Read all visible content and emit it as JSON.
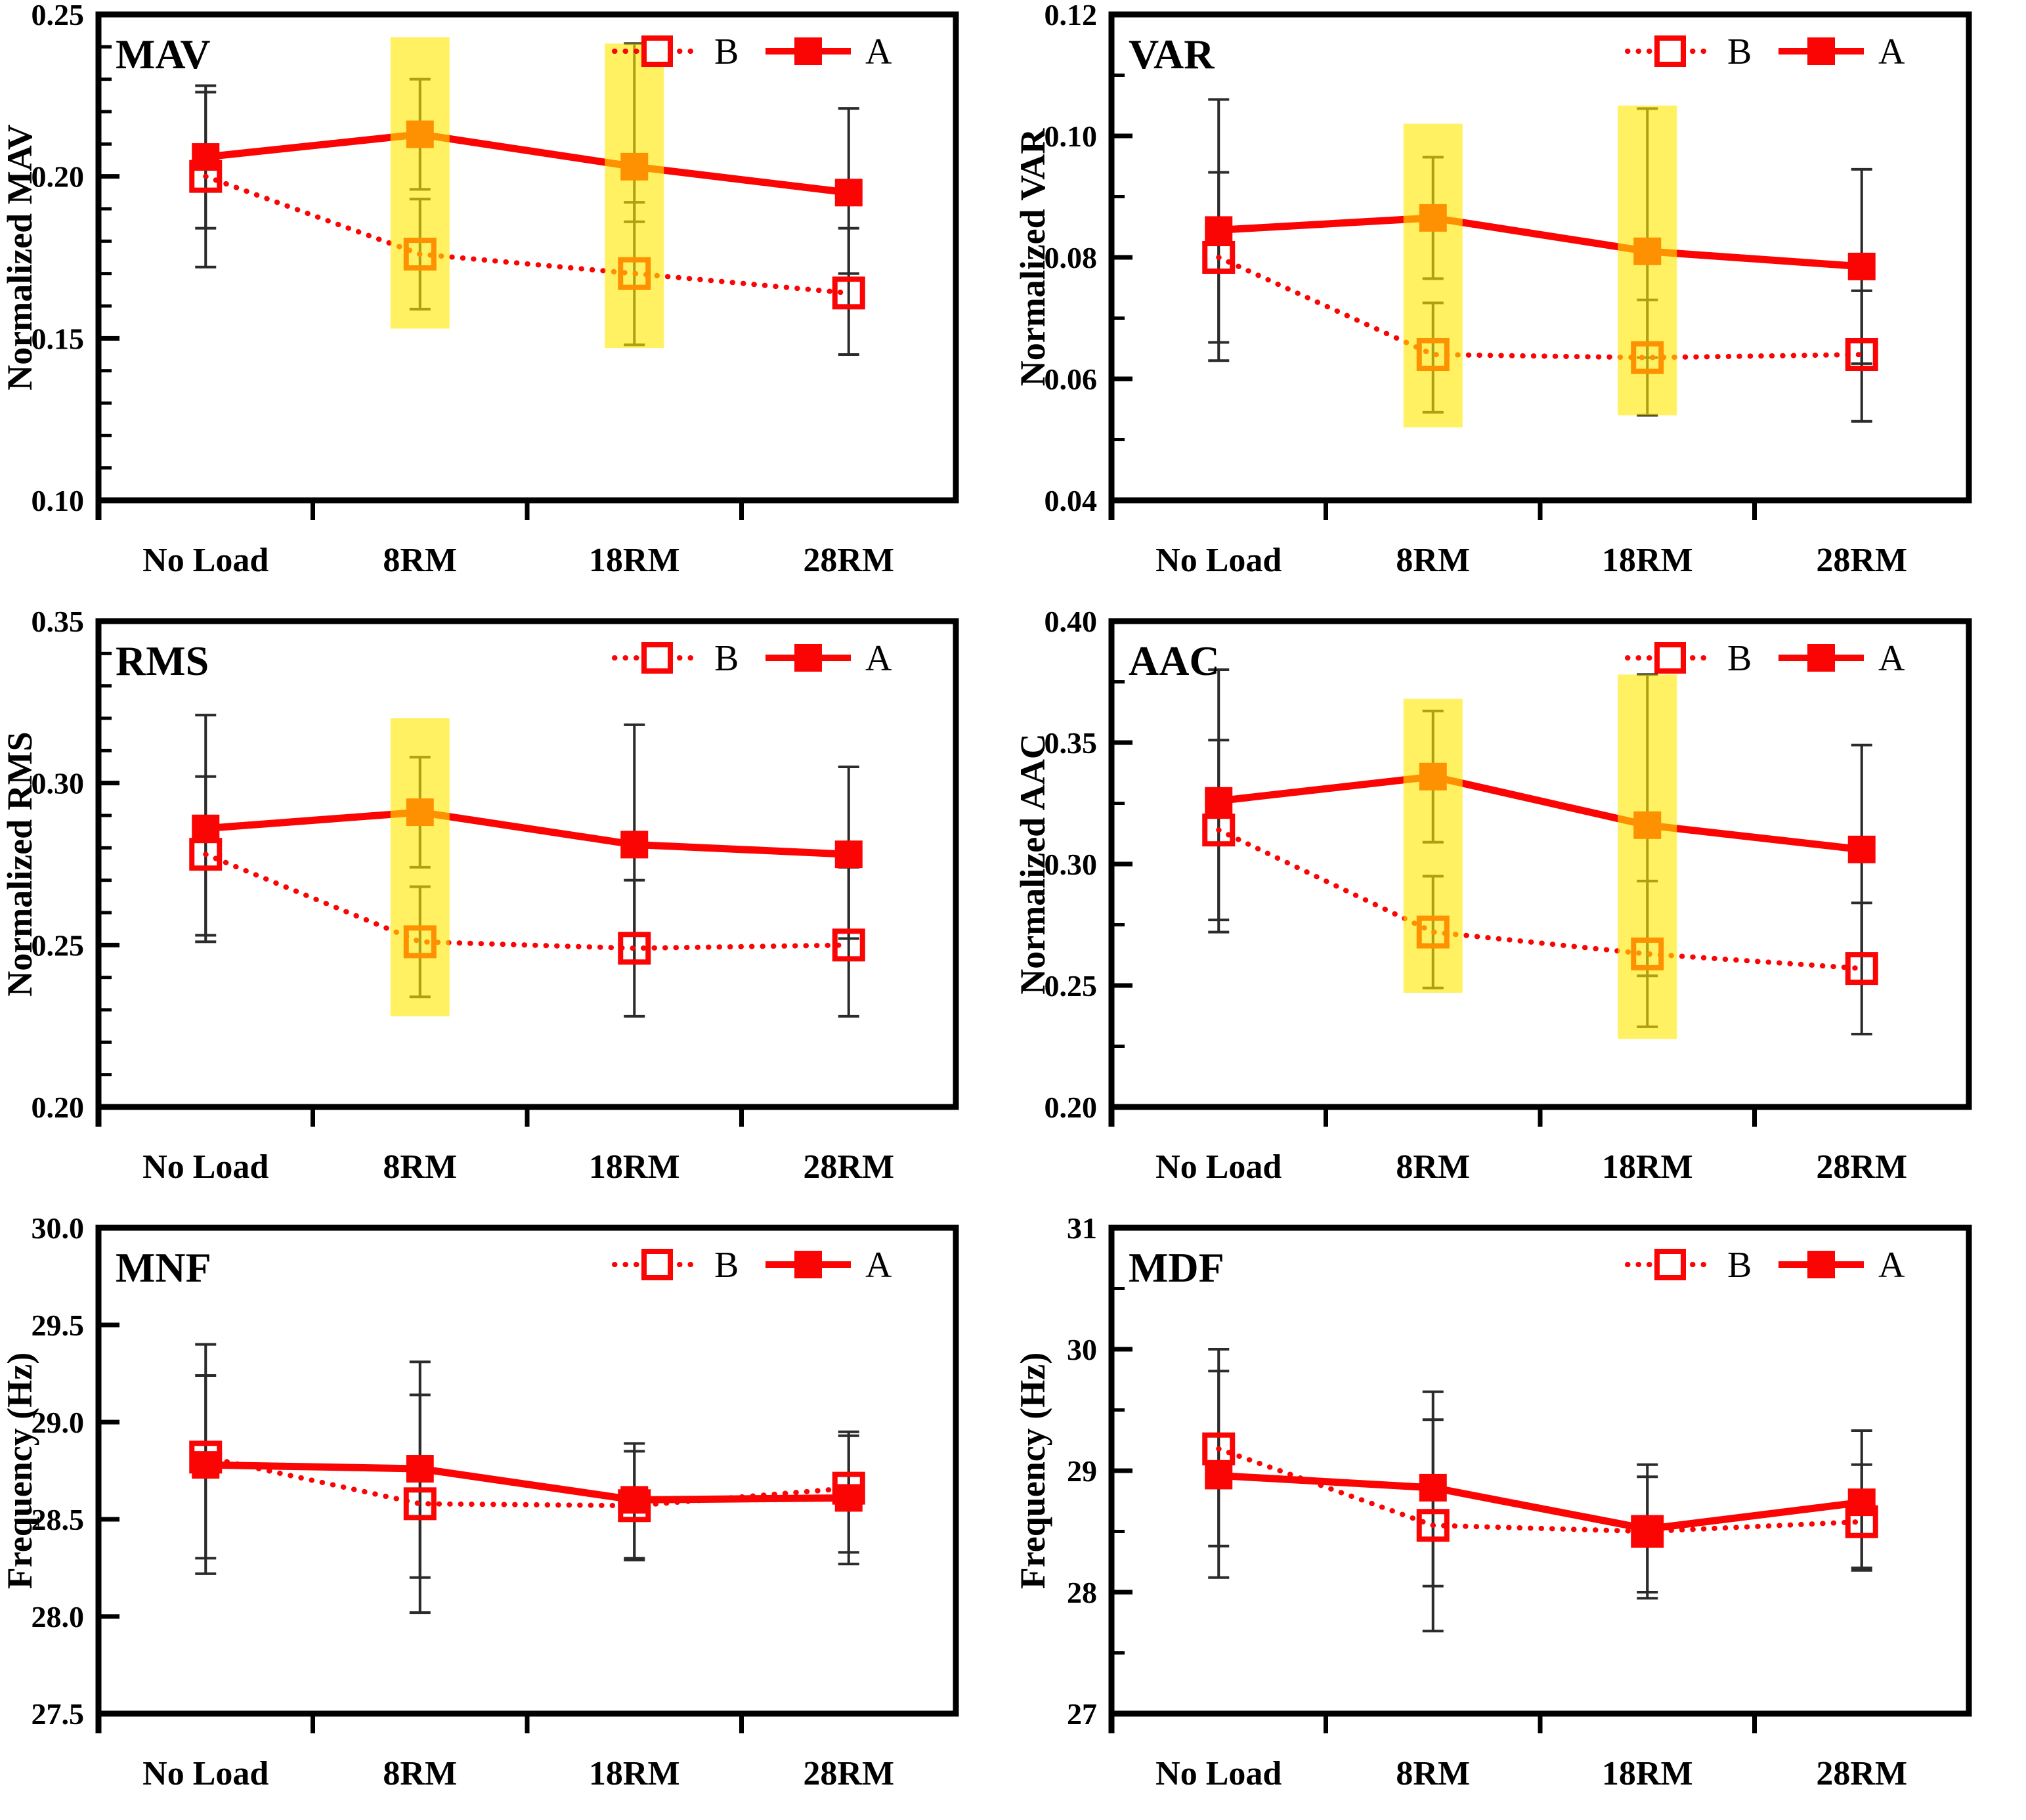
{
  "figure": {
    "background": "#ffffff",
    "columns": 2,
    "rows": 3
  },
  "colors": {
    "series_red": "#fb0404",
    "error_bar": "#2b2b2b",
    "highlight_band": "rgba(255,232,0,0.62)",
    "frame": "#000000",
    "text": "#000000"
  },
  "legend": {
    "entries": [
      {
        "label": "B",
        "style": "dotted-open-square"
      },
      {
        "label": "A",
        "style": "solid-filled-square"
      }
    ]
  },
  "categories": [
    "No Load",
    "8RM",
    "18RM",
    "28RM"
  ],
  "chart_data": [
    {
      "type": "line",
      "title": "MAV",
      "ylabel": "Normalized MAV",
      "ylim": [
        0.1,
        0.25
      ],
      "yticks": [
        0.1,
        0.15,
        0.2,
        0.25
      ],
      "ytick_labels": [
        "0.10",
        "0.15",
        "0.20",
        "0.25"
      ],
      "minor_step": 0.01,
      "grid": false,
      "legend_position": "top-right-inside",
      "series": [
        {
          "name": "B",
          "style": "dotted-open",
          "values": [
            0.2,
            0.176,
            0.17,
            0.164
          ],
          "err_hi": [
            0.226,
            0.193,
            0.192,
            0.184
          ],
          "err_lo": [
            0.172,
            0.159,
            0.148,
            0.145
          ]
        },
        {
          "name": "A",
          "style": "solid-filled",
          "values": [
            0.206,
            0.213,
            0.203,
            0.195
          ],
          "err_hi": [
            0.228,
            0.23,
            0.241,
            0.221
          ],
          "err_lo": [
            0.184,
            0.196,
            0.186,
            0.17
          ]
        }
      ],
      "highlight_bands": [
        {
          "category": "8RM",
          "from": 0.153,
          "to": 0.243
        },
        {
          "category": "18RM",
          "from": 0.147,
          "to": 0.241
        }
      ]
    },
    {
      "type": "line",
      "title": "VAR",
      "ylabel": "Normalized VAR",
      "ylim": [
        0.04,
        0.12
      ],
      "yticks": [
        0.04,
        0.06,
        0.08,
        0.1,
        0.12
      ],
      "ytick_labels": [
        "0.04",
        "0.06",
        "0.08",
        "0.10",
        "0.12"
      ],
      "minor_step": 0.01,
      "grid": false,
      "legend_position": "top-right-inside",
      "series": [
        {
          "name": "B",
          "style": "dotted-open",
          "values": [
            0.08,
            0.064,
            0.0635,
            0.064
          ],
          "err_hi": [
            0.094,
            0.0725,
            0.073,
            0.0745
          ],
          "err_lo": [
            0.066,
            0.0545,
            0.054,
            0.053
          ]
        },
        {
          "name": "A",
          "style": "solid-filled",
          "values": [
            0.0845,
            0.0865,
            0.081,
            0.0785
          ],
          "err_hi": [
            0.106,
            0.0965,
            0.1045,
            0.0945
          ],
          "err_lo": [
            0.063,
            0.0765,
            0.0635,
            0.0625
          ]
        }
      ],
      "highlight_bands": [
        {
          "category": "8RM",
          "from": 0.052,
          "to": 0.102
        },
        {
          "category": "18RM",
          "from": 0.054,
          "to": 0.105
        }
      ]
    },
    {
      "type": "line",
      "title": "RMS",
      "ylabel": "Normalized RMS",
      "ylim": [
        0.2,
        0.35
      ],
      "yticks": [
        0.2,
        0.25,
        0.3,
        0.35
      ],
      "ytick_labels": [
        "0.20",
        "0.25",
        "0.30",
        "0.35"
      ],
      "minor_step": 0.01,
      "grid": false,
      "legend_position": "top-right-inside",
      "series": [
        {
          "name": "B",
          "style": "dotted-open",
          "values": [
            0.278,
            0.251,
            0.249,
            0.25
          ],
          "err_hi": [
            0.302,
            0.268,
            0.27,
            0.274
          ],
          "err_lo": [
            0.253,
            0.234,
            0.228,
            0.228
          ]
        },
        {
          "name": "A",
          "style": "solid-filled",
          "values": [
            0.286,
            0.291,
            0.281,
            0.278
          ],
          "err_hi": [
            0.321,
            0.308,
            0.318,
            0.305
          ],
          "err_lo": [
            0.251,
            0.274,
            0.245,
            0.252
          ]
        }
      ],
      "highlight_bands": [
        {
          "category": "8RM",
          "from": 0.228,
          "to": 0.32
        }
      ]
    },
    {
      "type": "line",
      "title": "AAC",
      "ylabel": "Normalized AAC",
      "ylim": [
        0.2,
        0.4
      ],
      "yticks": [
        0.2,
        0.25,
        0.3,
        0.35,
        0.4
      ],
      "ytick_labels": [
        "0.20",
        "0.25",
        "0.30",
        "0.35",
        "0.40"
      ],
      "minor_step": 0.025,
      "grid": false,
      "legend_position": "top-right-inside",
      "series": [
        {
          "name": "B",
          "style": "dotted-open",
          "values": [
            0.314,
            0.272,
            0.263,
            0.257
          ],
          "err_hi": [
            0.351,
            0.295,
            0.293,
            0.284
          ],
          "err_lo": [
            0.277,
            0.249,
            0.233,
            0.23
          ]
        },
        {
          "name": "A",
          "style": "solid-filled",
          "values": [
            0.326,
            0.336,
            0.316,
            0.306
          ],
          "err_hi": [
            0.38,
            0.363,
            0.378,
            0.349
          ],
          "err_lo": [
            0.272,
            0.309,
            0.254,
            0.263
          ]
        }
      ],
      "highlight_bands": [
        {
          "category": "8RM",
          "from": 0.247,
          "to": 0.368
        },
        {
          "category": "18RM",
          "from": 0.228,
          "to": 0.378
        }
      ]
    },
    {
      "type": "line",
      "title": "MNF",
      "ylabel": "Frequency (Hz)",
      "ylim": [
        27.5,
        30.0
      ],
      "yticks": [
        27.5,
        28.0,
        28.5,
        29.0,
        29.5,
        30.0
      ],
      "ytick_labels": [
        "27.5",
        "28.0",
        "28.5",
        "29.0",
        "29.5",
        "30.0"
      ],
      "minor_step": null,
      "grid": false,
      "legend_position": "top-right-inside",
      "series": [
        {
          "name": "B",
          "style": "dotted-open",
          "values": [
            28.82,
            28.58,
            28.57,
            28.66
          ],
          "err_hi": [
            29.24,
            29.14,
            28.85,
            28.93
          ],
          "err_lo": [
            28.3,
            28.2,
            28.29,
            28.33
          ]
        },
        {
          "name": "A",
          "style": "solid-filled",
          "values": [
            28.78,
            28.76,
            28.6,
            28.61
          ],
          "err_hi": [
            29.4,
            29.31,
            28.89,
            28.95
          ],
          "err_lo": [
            28.22,
            28.02,
            28.3,
            28.27
          ]
        }
      ],
      "highlight_bands": []
    },
    {
      "type": "line",
      "title": "MDF",
      "ylabel": "Frequency (Hz)",
      "ylim": [
        27,
        31
      ],
      "yticks": [
        27,
        28,
        29,
        30,
        31
      ],
      "ytick_labels": [
        "27",
        "28",
        "29",
        "30",
        "31"
      ],
      "minor_step": 0.5,
      "grid": false,
      "legend_position": "top-right-inside",
      "series": [
        {
          "name": "B",
          "style": "dotted-open",
          "values": [
            29.18,
            28.55,
            28.5,
            28.58
          ],
          "err_hi": [
            30.0,
            29.42,
            28.95,
            29.05
          ],
          "err_lo": [
            28.38,
            27.68,
            27.95,
            28.2
          ]
        },
        {
          "name": "A",
          "style": "solid-filled",
          "values": [
            28.96,
            28.86,
            28.52,
            28.74
          ],
          "err_hi": [
            29.82,
            29.65,
            29.05,
            29.33
          ],
          "err_lo": [
            28.12,
            28.05,
            28.0,
            28.18
          ]
        }
      ],
      "highlight_bands": []
    }
  ]
}
